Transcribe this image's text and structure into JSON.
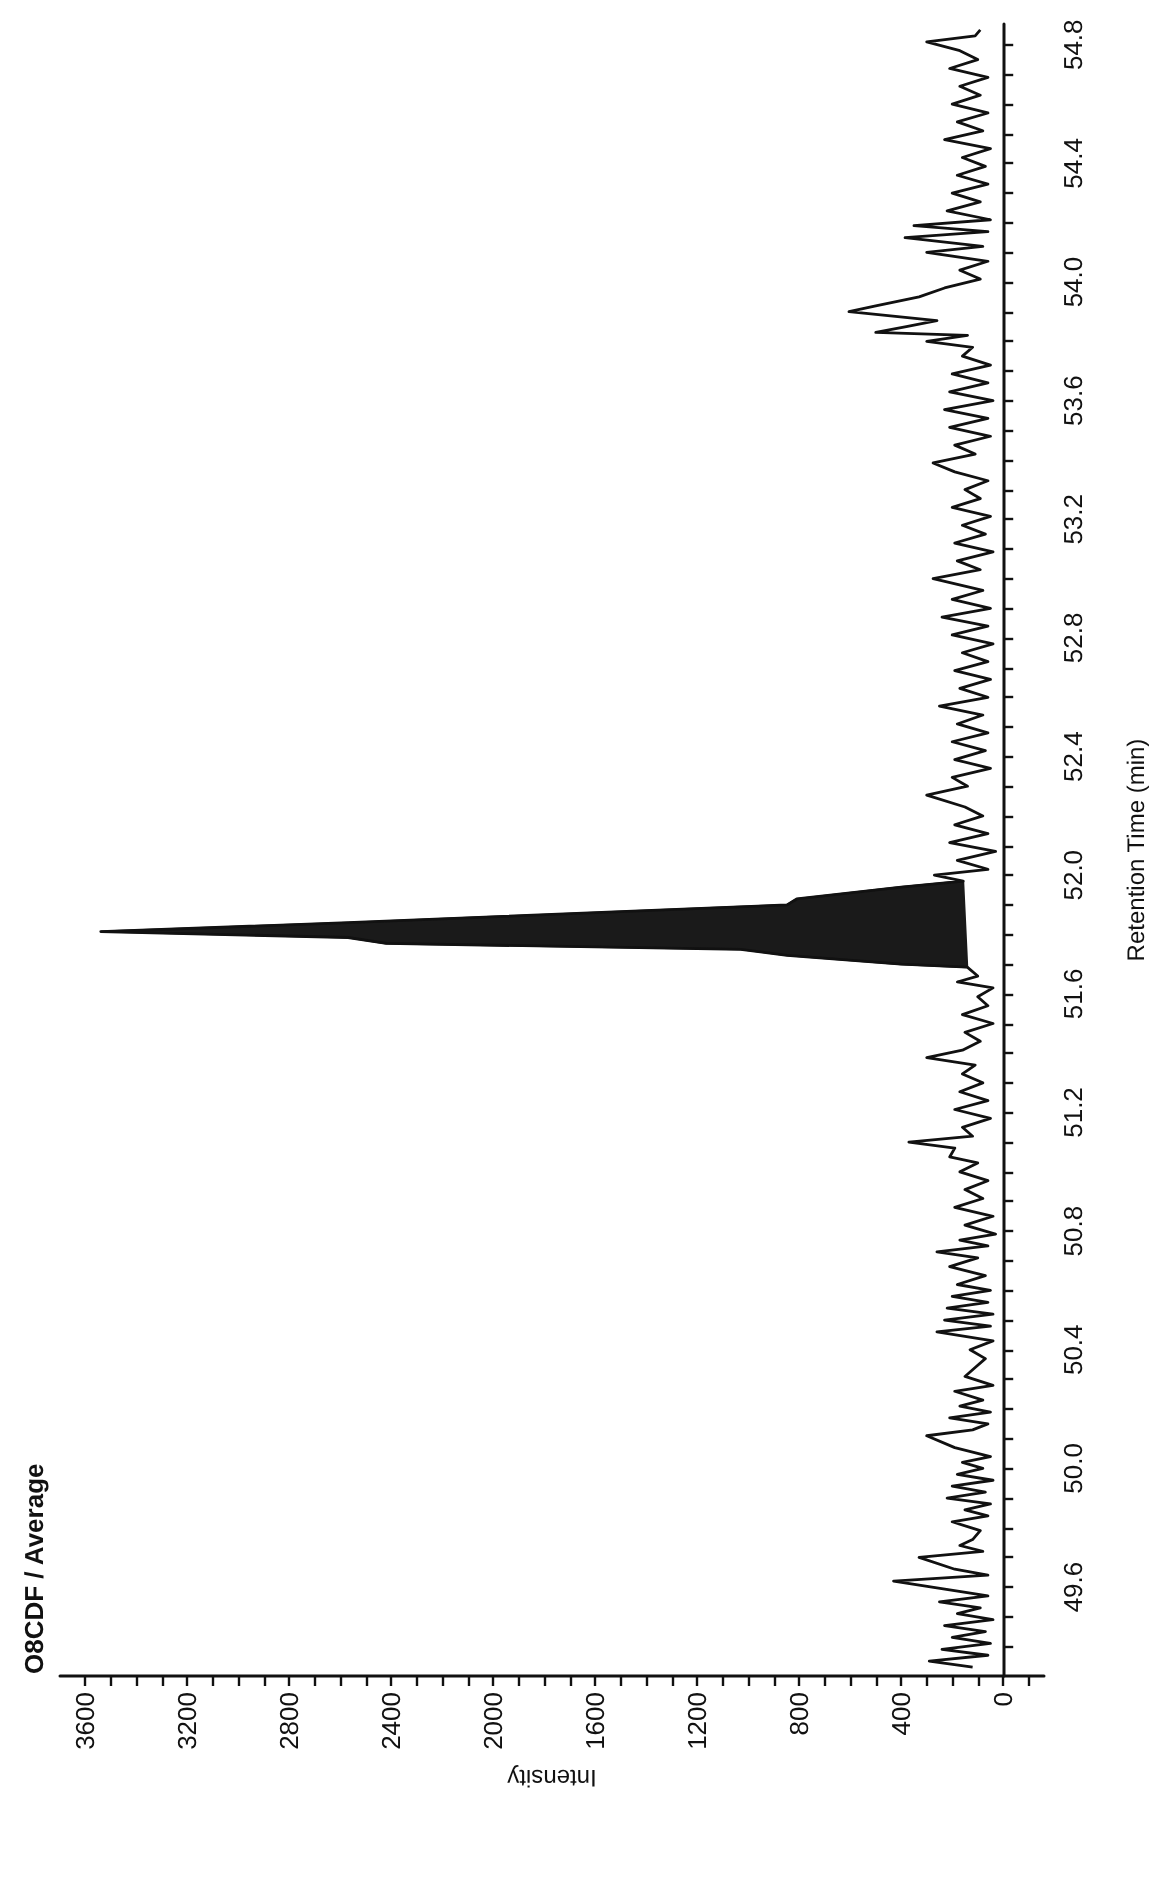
{
  "chart_data": {
    "type": "line",
    "title": "O8CDF / Average",
    "xlabel": "Intensity",
    "ylabel": "Retention Time (min)",
    "marker": "none",
    "xlim": [
      3700,
      -160
    ],
    "ylim": [
      49.3,
      54.87
    ],
    "xticks": [
      {
        "value": -100,
        "label": null
      },
      0,
      {
        "value": 100,
        "label": null
      },
      {
        "value": 200,
        "label": null
      },
      {
        "value": 300,
        "label": null
      },
      400,
      {
        "value": 500,
        "label": null
      },
      {
        "value": 600,
        "label": null
      },
      {
        "value": 700,
        "label": null
      },
      800,
      {
        "value": 900,
        "label": null
      },
      {
        "value": 1000,
        "label": null
      },
      {
        "value": 1100,
        "label": null
      },
      1200,
      {
        "value": 1300,
        "label": null
      },
      {
        "value": 1400,
        "label": null
      },
      {
        "value": 1500,
        "label": null
      },
      1600,
      {
        "value": 1700,
        "label": null
      },
      {
        "value": 1800,
        "label": null
      },
      {
        "value": 1900,
        "label": null
      },
      2000,
      {
        "value": 2100,
        "label": null
      },
      {
        "value": 2200,
        "label": null
      },
      {
        "value": 2300,
        "label": null
      },
      2400,
      {
        "value": 2500,
        "label": null
      },
      {
        "value": 2600,
        "label": null
      },
      {
        "value": 2700,
        "label": null
      },
      2800,
      {
        "value": 2900,
        "label": null
      },
      {
        "value": 3000,
        "label": null
      },
      {
        "value": 3100,
        "label": null
      },
      3200,
      {
        "value": 3300,
        "label": null
      },
      {
        "value": 3400,
        "label": null
      },
      {
        "value": 3500,
        "label": null
      },
      3600
    ],
    "yticks": [
      {
        "value": 49.4,
        "label": null
      },
      {
        "value": 49.5,
        "label": null
      },
      49.6,
      {
        "value": 49.7,
        "label": null
      },
      {
        "value": 49.8,
        "label": null
      },
      {
        "value": 49.9,
        "label": null
      },
      {
        "value": 50,
        "label": "50.0"
      },
      {
        "value": 50.1,
        "label": null
      },
      {
        "value": 50.2,
        "label": null
      },
      {
        "value": 50.3,
        "label": null
      },
      50.4,
      {
        "value": 50.5,
        "label": null
      },
      {
        "value": 50.6,
        "label": null
      },
      {
        "value": 50.7,
        "label": null
      },
      50.8,
      {
        "value": 50.9,
        "label": null
      },
      {
        "value": 51,
        "label": null
      },
      {
        "value": 51.1,
        "label": null
      },
      51.2,
      {
        "value": 51.3,
        "label": null
      },
      {
        "value": 51.4,
        "label": null
      },
      {
        "value": 51.5,
        "label": null
      },
      51.6,
      {
        "value": 51.7,
        "label": null
      },
      {
        "value": 51.8,
        "label": null
      },
      {
        "value": 51.9,
        "label": null
      },
      {
        "value": 52,
        "label": "52.0"
      },
      {
        "value": 52.1,
        "label": null
      },
      {
        "value": 52.2,
        "label": null
      },
      {
        "value": 52.3,
        "label": null
      },
      52.4,
      {
        "value": 52.5,
        "label": null
      },
      {
        "value": 52.6,
        "label": null
      },
      {
        "value": 52.7,
        "label": null
      },
      52.8,
      {
        "value": 52.9,
        "label": null
      },
      {
        "value": 53,
        "label": null
      },
      {
        "value": 53.1,
        "label": null
      },
      53.2,
      {
        "value": 53.3,
        "label": null
      },
      {
        "value": 53.4,
        "label": null
      },
      {
        "value": 53.5,
        "label": null
      },
      53.6,
      {
        "value": 53.7,
        "label": null
      },
      {
        "value": 53.8,
        "label": null
      },
      {
        "value": 53.9,
        "label": null
      },
      {
        "value": 54,
        "label": "54.0"
      },
      {
        "value": 54.1,
        "label": null
      },
      {
        "value": 54.2,
        "label": null
      },
      {
        "value": 54.3,
        "label": null
      },
      54.4,
      {
        "value": 54.5,
        "label": null
      },
      {
        "value": 54.6,
        "label": null
      },
      {
        "value": 54.7,
        "label": null
      },
      54.8
    ],
    "series": [
      {
        "color": "#111111",
        "values": [
          49.33,
          49.35,
          49.37,
          49.39,
          49.41,
          49.43,
          49.45,
          49.47,
          49.49,
          49.51,
          49.53,
          49.55,
          49.57,
          49.59,
          49.62,
          49.64,
          49.66,
          49.7,
          49.72,
          49.74,
          49.76,
          49.79,
          49.82,
          49.84,
          49.86,
          49.88,
          49.9,
          49.92,
          49.94,
          49.96,
          49.98,
          50,
          50.02,
          50.04,
          50.07,
          50.11,
          50.13,
          50.15,
          50.17,
          50.19,
          50.21,
          50.23,
          50.26,
          50.28,
          50.31,
          50.34,
          50.37,
          50.4,
          50.43,
          50.46,
          50.48,
          50.5,
          50.52,
          50.54,
          50.56,
          50.58,
          50.6,
          50.62,
          50.65,
          50.68,
          50.71,
          50.73,
          50.75,
          50.77,
          50.79,
          50.82,
          50.85,
          50.88,
          50.91,
          50.94,
          50.97,
          51,
          51.03,
          51.05,
          51.08,
          51.1,
          51.12,
          51.15,
          51.18,
          51.21,
          51.24,
          51.27,
          51.3,
          51.33,
          51.36,
          51.385,
          51.41,
          51.44,
          51.47,
          51.5,
          51.53,
          51.56,
          51.59,
          51.62,
          51.64,
          51.66,
          51.69,
          51.7,
          51.73,
          51.75,
          51.77,
          51.79,
          51.81,
          51.84,
          51.9,
          51.92,
          51.96,
          51.98,
          52,
          52.02,
          52.05,
          52.08,
          52.11,
          52.14,
          52.17,
          52.2,
          52.23,
          52.27,
          52.3,
          52.33,
          52.36,
          52.39,
          52.42,
          52.45,
          52.48,
          52.51,
          52.54,
          52.57,
          52.6,
          52.63,
          52.66,
          52.69,
          52.72,
          52.75,
          52.78,
          52.81,
          52.84,
          52.87,
          52.9,
          52.93,
          52.96,
          53,
          53.03,
          53.06,
          53.09,
          53.12,
          53.15,
          53.18,
          53.21,
          53.24,
          53.27,
          53.3,
          53.33,
          53.36,
          53.39,
          53.42,
          53.45,
          53.48,
          53.51,
          53.54,
          53.57,
          53.6,
          53.63,
          53.66,
          53.69,
          53.72,
          53.75,
          53.78,
          53.8,
          53.82,
          53.83,
          53.85,
          53.87,
          53.9,
          53.92,
          53.95,
          53.98,
          54.01,
          54.04,
          54.07,
          54.1,
          54.12,
          54.15,
          54.17,
          54.19,
          54.21,
          54.24,
          54.27,
          54.3,
          54.33,
          54.36,
          54.39,
          54.42,
          54.45,
          54.48,
          54.51,
          54.54,
          54.57,
          54.6,
          54.63,
          54.66,
          54.69,
          54.72,
          54.75,
          54.78,
          54.81,
          54.83,
          54.85
        ],
        "x": [
          120,
          290,
          60,
          240,
          50,
          200,
          70,
          230,
          40,
          180,
          90,
          250,
          60,
          210,
          430,
          60,
          190,
          330,
          80,
          170,
          120,
          90,
          200,
          60,
          150,
          50,
          220,
          70,
          200,
          40,
          180,
          80,
          160,
          50,
          190,
          300,
          120,
          60,
          210,
          50,
          170,
          80,
          190,
          40,
          150,
          110,
          70,
          130,
          40,
          260,
          50,
          230,
          40,
          220,
          60,
          200,
          50,
          180,
          70,
          210,
          100,
          260,
          60,
          170,
          30,
          150,
          40,
          190,
          80,
          150,
          60,
          170,
          100,
          210,
          190,
          370,
          120,
          160,
          50,
          190,
          60,
          170,
          80,
          160,
          110,
          300,
          160,
          90,
          150,
          40,
          160,
          60,
          100,
          40,
          180,
          100,
          141,
          400,
          848,
          1030,
          2420,
          2570,
          3540,
          2570,
          848,
          810,
          400,
          157,
          270,
          60,
          180,
          30,
          210,
          60,
          190,
          80,
          150,
          300,
          140,
          200,
          50,
          190,
          70,
          200,
          60,
          180,
          80,
          250,
          60,
          170,
          50,
          190,
          60,
          160,
          40,
          200,
          60,
          240,
          50,
          200,
          80,
          275,
          90,
          180,
          40,
          190,
          70,
          160,
          50,
          200,
          90,
          150,
          60,
          190,
          275,
          110,
          190,
          50,
          210,
          60,
          230,
          40,
          210,
          60,
          200,
          50,
          160,
          120,
          300,
          140,
          500,
          380,
          260,
          605,
          500,
          330,
          230,
          90,
          170,
          60,
          300,
          80,
          385,
          60,
          350,
          50,
          220,
          90,
          200,
          60,
          180,
          70,
          160,
          50,
          230,
          80,
          180,
          60,
          200,
          90,
          170,
          60,
          210,
          100,
          170,
          300,
          110,
          90
        ]
      },
      {
        "type": "area",
        "color": "#1a1a1a",
        "values": [
          51.69,
          51.7,
          51.73,
          51.75,
          51.77,
          51.79,
          51.81,
          51.84,
          51.9,
          51.92,
          51.96,
          51.98
        ],
        "x": [
          141,
          400,
          848,
          1030,
          2420,
          2570,
          3540,
          2570,
          848,
          810,
          400,
          157
        ]
      }
    ]
  }
}
